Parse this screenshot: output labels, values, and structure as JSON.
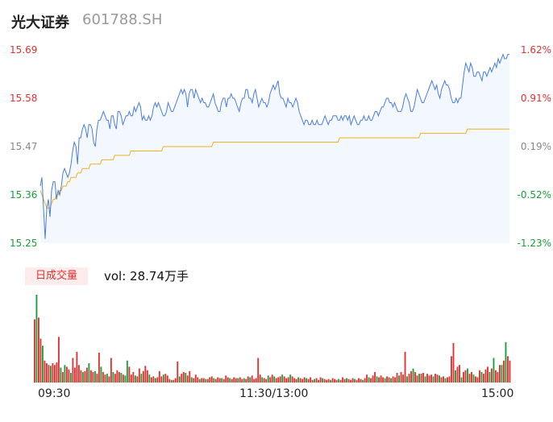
{
  "header": {
    "name": "光大证券",
    "code": "601788.SH"
  },
  "colors": {
    "up": "#e03131",
    "down": "#1a9e3a",
    "price_line": "#4a7de0",
    "avg_line": "#f2b01e",
    "neutral": "#888888"
  },
  "chart_data": {
    "type": "line",
    "price_axis": {
      "labels": [
        "15.69",
        "15.58",
        "15.47",
        "15.36",
        "15.25"
      ],
      "min": 15.25,
      "max": 15.69
    },
    "percent_axis": {
      "labels": [
        "1.62%",
        "0.91%",
        "0.19%",
        "-0.52%",
        "-1.23%"
      ]
    },
    "x_labels": [
      "09:30",
      "11:30/13:00",
      "15:00"
    ],
    "volume_badge": "日成交量",
    "volume_label": "vol: 28.74万手",
    "price": [
      15.38,
      15.4,
      15.33,
      15.26,
      15.33,
      15.35,
      15.31,
      15.37,
      15.39,
      15.39,
      15.35,
      15.37,
      15.36,
      15.38,
      15.41,
      15.42,
      15.41,
      15.4,
      15.41,
      15.43,
      15.46,
      15.48,
      15.47,
      15.43,
      15.49,
      15.49,
      15.51,
      15.52,
      15.51,
      15.49,
      15.52,
      15.52,
      15.51,
      15.48,
      15.47,
      15.51,
      15.53,
      15.53,
      15.54,
      15.55,
      15.54,
      15.53,
      15.53,
      15.51,
      15.54,
      15.54,
      15.52,
      15.51,
      15.55,
      15.55,
      15.54,
      15.52,
      15.53,
      15.54,
      15.54,
      15.55,
      15.54,
      15.54,
      15.56,
      15.55,
      15.56,
      15.57,
      15.56,
      15.53,
      15.54,
      15.53,
      15.53,
      15.54,
      15.53,
      15.54,
      15.56,
      15.57,
      15.56,
      15.57,
      15.56,
      15.55,
      15.54,
      15.54,
      15.55,
      15.57,
      15.56,
      15.55,
      15.55,
      15.56,
      15.57,
      15.58,
      15.59,
      15.6,
      15.59,
      15.6,
      15.59,
      15.56,
      15.59,
      15.6,
      15.6,
      15.58,
      15.6,
      15.59,
      15.58,
      15.57,
      15.58,
      15.57,
      15.57,
      15.56,
      15.56,
      15.57,
      15.58,
      15.59,
      15.57,
      15.56,
      15.55,
      15.55,
      15.57,
      15.58,
      15.58,
      15.56,
      15.58,
      15.58,
      15.59,
      15.58,
      15.58,
      15.57,
      15.56,
      15.55,
      15.57,
      15.58,
      15.58,
      15.6,
      15.6,
      15.58,
      15.58,
      15.57,
      15.59,
      15.6,
      15.58,
      15.56,
      15.57,
      15.58,
      15.57,
      15.57,
      15.56,
      15.57,
      15.59,
      15.6,
      15.61,
      15.6,
      15.61,
      15.62,
      15.59,
      15.58,
      15.58,
      15.57,
      15.56,
      15.58,
      15.57,
      15.57,
      15.56,
      15.57,
      15.58,
      15.57,
      15.55,
      15.54,
      15.53,
      15.52,
      15.53,
      15.53,
      15.52,
      15.52,
      15.53,
      15.52,
      15.52,
      15.53,
      15.52,
      15.52,
      15.52,
      15.53,
      15.54,
      15.53,
      15.52,
      15.53,
      15.53,
      15.54,
      15.54,
      15.54,
      15.53,
      15.53,
      15.54,
      15.53,
      15.54,
      15.54,
      15.53,
      15.54,
      15.52,
      15.53,
      15.54,
      15.53,
      15.52,
      15.52,
      15.53,
      15.53,
      15.54,
      15.53,
      15.53,
      15.54,
      15.53,
      15.53,
      15.54,
      15.55,
      15.55,
      15.54,
      15.55,
      15.56,
      15.56,
      15.57,
      15.58,
      15.58,
      15.57,
      15.57,
      15.56,
      15.57,
      15.56,
      15.55,
      15.55,
      15.55,
      15.56,
      15.58,
      15.59,
      15.58,
      15.57,
      15.55,
      15.55,
      15.56,
      15.58,
      15.6,
      15.59,
      15.58,
      15.57,
      15.57,
      15.58,
      15.59,
      15.6,
      15.61,
      15.62,
      15.61,
      15.6,
      15.61,
      15.59,
      15.58,
      15.6,
      15.61,
      15.62,
      15.61,
      15.61,
      15.6,
      15.58,
      15.57,
      15.57,
      15.58,
      15.57,
      15.58,
      15.58,
      15.61,
      15.64,
      15.66,
      15.65,
      15.64,
      15.66,
      15.65,
      15.63,
      15.63,
      15.64,
      15.64,
      15.63,
      15.62,
      15.64,
      15.64,
      15.63,
      15.64,
      15.65,
      15.64,
      15.65,
      15.66,
      15.65,
      15.67,
      15.66,
      15.67,
      15.68,
      15.67,
      15.67,
      15.68,
      15.68
    ],
    "avg": [
      15.37,
      15.36,
      15.35,
      15.34,
      15.33,
      15.33,
      15.33,
      15.34,
      15.35,
      15.35,
      15.36,
      15.36,
      15.37,
      15.37,
      15.38,
      15.38,
      15.38,
      15.39,
      15.39,
      15.4,
      15.4,
      15.4,
      15.4,
      15.41,
      15.41,
      15.41,
      15.42,
      15.42,
      15.42,
      15.42,
      15.42,
      15.43,
      15.43,
      15.43,
      15.43,
      15.43,
      15.43,
      15.43,
      15.44,
      15.44,
      15.44,
      15.44,
      15.44,
      15.44,
      15.44,
      15.44,
      15.45,
      15.45,
      15.45,
      15.45,
      15.45,
      15.45,
      15.45,
      15.45,
      15.45,
      15.45,
      15.46,
      15.46,
      15.46,
      15.46,
      15.46,
      15.46,
      15.46,
      15.46,
      15.46,
      15.46,
      15.46,
      15.46,
      15.46,
      15.46,
      15.46,
      15.46,
      15.46,
      15.46,
      15.46,
      15.46,
      15.47,
      15.47,
      15.47,
      15.47,
      15.47,
      15.47,
      15.47,
      15.47,
      15.47,
      15.47,
      15.47,
      15.47,
      15.47,
      15.47,
      15.47,
      15.47,
      15.47,
      15.47,
      15.47,
      15.47,
      15.47,
      15.47,
      15.47,
      15.47,
      15.47,
      15.47,
      15.47,
      15.47,
      15.47,
      15.47,
      15.47,
      15.48,
      15.48,
      15.48,
      15.48,
      15.48,
      15.48,
      15.48,
      15.48,
      15.48,
      15.48,
      15.48,
      15.48,
      15.48,
      15.48,
      15.48,
      15.48,
      15.48,
      15.48,
      15.48,
      15.48,
      15.48,
      15.48,
      15.48,
      15.48,
      15.48,
      15.48,
      15.48,
      15.48,
      15.48,
      15.48,
      15.48,
      15.48,
      15.48,
      15.48,
      15.48,
      15.48,
      15.48,
      15.48,
      15.48,
      15.48,
      15.48,
      15.48,
      15.48,
      15.48,
      15.48,
      15.48,
      15.48,
      15.48,
      15.48,
      15.48,
      15.48,
      15.48,
      15.48,
      15.48,
      15.48,
      15.48,
      15.48,
      15.48,
      15.48,
      15.48,
      15.48,
      15.48,
      15.48,
      15.48,
      15.48,
      15.48,
      15.48,
      15.48,
      15.48,
      15.48,
      15.48,
      15.48,
      15.48,
      15.48,
      15.48,
      15.48,
      15.48,
      15.48,
      15.49,
      15.49,
      15.49,
      15.49,
      15.49,
      15.49,
      15.49,
      15.49,
      15.49,
      15.49,
      15.49,
      15.49,
      15.49,
      15.49,
      15.49,
      15.49,
      15.49,
      15.49,
      15.49,
      15.49,
      15.49,
      15.49,
      15.49,
      15.49,
      15.49,
      15.49,
      15.49,
      15.49,
      15.49,
      15.49,
      15.49,
      15.49,
      15.49,
      15.49,
      15.49,
      15.49,
      15.49,
      15.49,
      15.49,
      15.49,
      15.49,
      15.49,
      15.49,
      15.49,
      15.49,
      15.49,
      15.49,
      15.49,
      15.49,
      15.49,
      15.5,
      15.5,
      15.5,
      15.5,
      15.5,
      15.5,
      15.5,
      15.5,
      15.5,
      15.5,
      15.5,
      15.5,
      15.5,
      15.5,
      15.5,
      15.5,
      15.5,
      15.5,
      15.5,
      15.5,
      15.5,
      15.5,
      15.5,
      15.5,
      15.5,
      15.5,
      15.5,
      15.5,
      15.5,
      15.51,
      15.51,
      15.51,
      15.51,
      15.51,
      15.51,
      15.51,
      15.51,
      15.51,
      15.51,
      15.51,
      15.51,
      15.51,
      15.51,
      15.51,
      15.51,
      15.51,
      15.51,
      15.51,
      15.51,
      15.51,
      15.51,
      15.51,
      15.51,
      15.51,
      15.51,
      15.51
    ],
    "volume": [
      [
        0.72,
        "u"
      ],
      [
        1.0,
        "d"
      ],
      [
        0.74,
        "u"
      ],
      [
        0.5,
        "u"
      ],
      [
        0.42,
        "d"
      ],
      [
        0.25,
        "u"
      ],
      [
        0.22,
        "u"
      ],
      [
        0.2,
        "u"
      ],
      [
        0.19,
        "d"
      ],
      [
        0.22,
        "u"
      ],
      [
        0.2,
        "u"
      ],
      [
        0.23,
        "u"
      ],
      [
        0.52,
        "u"
      ],
      [
        0.17,
        "d"
      ],
      [
        0.12,
        "u"
      ],
      [
        0.2,
        "d"
      ],
      [
        0.18,
        "u"
      ],
      [
        0.15,
        "u"
      ],
      [
        0.11,
        "d"
      ],
      [
        0.28,
        "u"
      ],
      [
        0.17,
        "u"
      ],
      [
        0.35,
        "u"
      ],
      [
        0.2,
        "u"
      ],
      [
        0.14,
        "u"
      ],
      [
        0.12,
        "d"
      ],
      [
        0.13,
        "u"
      ],
      [
        0.17,
        "u"
      ],
      [
        0.22,
        "d"
      ],
      [
        0.14,
        "u"
      ],
      [
        0.12,
        "u"
      ],
      [
        0.13,
        "d"
      ],
      [
        0.1,
        "u"
      ],
      [
        0.34,
        "u"
      ],
      [
        0.18,
        "d"
      ],
      [
        0.12,
        "u"
      ],
      [
        0.09,
        "u"
      ],
      [
        0.1,
        "d"
      ],
      [
        0.07,
        "u"
      ],
      [
        0.28,
        "u"
      ],
      [
        0.12,
        "d"
      ],
      [
        0.1,
        "u"
      ],
      [
        0.14,
        "u"
      ],
      [
        0.12,
        "u"
      ],
      [
        0.11,
        "d"
      ],
      [
        0.09,
        "u"
      ],
      [
        0.08,
        "d"
      ],
      [
        0.25,
        "d"
      ],
      [
        0.18,
        "u"
      ],
      [
        0.09,
        "u"
      ],
      [
        0.12,
        "u"
      ],
      [
        0.08,
        "d"
      ],
      [
        0.07,
        "u"
      ],
      [
        0.16,
        "u"
      ],
      [
        0.1,
        "d"
      ],
      [
        0.13,
        "u"
      ],
      [
        0.19,
        "u"
      ],
      [
        0.14,
        "u"
      ],
      [
        0.09,
        "d"
      ],
      [
        0.06,
        "u"
      ],
      [
        0.07,
        "u"
      ],
      [
        0.05,
        "d"
      ],
      [
        0.06,
        "u"
      ],
      [
        0.13,
        "u"
      ],
      [
        0.07,
        "u"
      ],
      [
        0.09,
        "d"
      ],
      [
        0.1,
        "u"
      ],
      [
        0.08,
        "u"
      ],
      [
        0.04,
        "u"
      ],
      [
        0.03,
        "d"
      ],
      [
        0.03,
        "u"
      ],
      [
        0.05,
        "u"
      ],
      [
        0.24,
        "u"
      ],
      [
        0.07,
        "d"
      ],
      [
        0.1,
        "u"
      ],
      [
        0.12,
        "u"
      ],
      [
        0.11,
        "d"
      ],
      [
        0.08,
        "u"
      ],
      [
        0.13,
        "u"
      ],
      [
        0.06,
        "d"
      ],
      [
        0.05,
        "u"
      ],
      [
        0.09,
        "u"
      ],
      [
        0.06,
        "u"
      ],
      [
        0.04,
        "d"
      ],
      [
        0.05,
        "u"
      ],
      [
        0.05,
        "u"
      ],
      [
        0.04,
        "d"
      ],
      [
        0.04,
        "u"
      ],
      [
        0.06,
        "u"
      ],
      [
        0.07,
        "u"
      ],
      [
        0.05,
        "d"
      ],
      [
        0.04,
        "u"
      ],
      [
        0.06,
        "u"
      ],
      [
        0.05,
        "u"
      ],
      [
        0.05,
        "d"
      ],
      [
        0.04,
        "u"
      ],
      [
        0.08,
        "u"
      ],
      [
        0.06,
        "u"
      ],
      [
        0.05,
        "d"
      ],
      [
        0.04,
        "u"
      ],
      [
        0.06,
        "u"
      ],
      [
        0.05,
        "u"
      ],
      [
        0.05,
        "d"
      ],
      [
        0.06,
        "u"
      ],
      [
        0.04,
        "u"
      ],
      [
        0.05,
        "d"
      ],
      [
        0.04,
        "u"
      ],
      [
        0.07,
        "u"
      ],
      [
        0.06,
        "d"
      ],
      [
        0.08,
        "u"
      ],
      [
        0.04,
        "u"
      ],
      [
        0.05,
        "u"
      ],
      [
        0.28,
        "u"
      ],
      [
        0.09,
        "u"
      ],
      [
        0.06,
        "d"
      ],
      [
        0.05,
        "u"
      ],
      [
        0.04,
        "u"
      ],
      [
        0.08,
        "d"
      ],
      [
        0.06,
        "u"
      ],
      [
        0.09,
        "u"
      ],
      [
        0.07,
        "d"
      ],
      [
        0.05,
        "u"
      ],
      [
        0.06,
        "u"
      ],
      [
        0.07,
        "u"
      ],
      [
        0.09,
        "d"
      ],
      [
        0.07,
        "u"
      ],
      [
        0.05,
        "u"
      ],
      [
        0.06,
        "u"
      ],
      [
        0.09,
        "d"
      ],
      [
        0.07,
        "u"
      ],
      [
        0.05,
        "u"
      ],
      [
        0.04,
        "u"
      ],
      [
        0.06,
        "d"
      ],
      [
        0.05,
        "u"
      ],
      [
        0.04,
        "u"
      ],
      [
        0.06,
        "u"
      ],
      [
        0.05,
        "d"
      ],
      [
        0.04,
        "u"
      ],
      [
        0.06,
        "u"
      ],
      [
        0.03,
        "u"
      ],
      [
        0.04,
        "d"
      ],
      [
        0.05,
        "u"
      ],
      [
        0.03,
        "u"
      ],
      [
        0.06,
        "u"
      ],
      [
        0.05,
        "d"
      ],
      [
        0.04,
        "u"
      ],
      [
        0.03,
        "u"
      ],
      [
        0.04,
        "u"
      ],
      [
        0.03,
        "d"
      ],
      [
        0.05,
        "u"
      ],
      [
        0.04,
        "u"
      ],
      [
        0.03,
        "u"
      ],
      [
        0.04,
        "d"
      ],
      [
        0.03,
        "u"
      ],
      [
        0.06,
        "u"
      ],
      [
        0.04,
        "u"
      ],
      [
        0.05,
        "d"
      ],
      [
        0.04,
        "u"
      ],
      [
        0.03,
        "u"
      ],
      [
        0.05,
        "u"
      ],
      [
        0.04,
        "d"
      ],
      [
        0.03,
        "u"
      ],
      [
        0.05,
        "u"
      ],
      [
        0.04,
        "u"
      ],
      [
        0.03,
        "d"
      ],
      [
        0.05,
        "u"
      ],
      [
        0.09,
        "u"
      ],
      [
        0.06,
        "d"
      ],
      [
        0.05,
        "u"
      ],
      [
        0.08,
        "u"
      ],
      [
        0.12,
        "u"
      ],
      [
        0.07,
        "d"
      ],
      [
        0.06,
        "u"
      ],
      [
        0.08,
        "u"
      ],
      [
        0.06,
        "u"
      ],
      [
        0.05,
        "d"
      ],
      [
        0.07,
        "u"
      ],
      [
        0.06,
        "u"
      ],
      [
        0.05,
        "d"
      ],
      [
        0.07,
        "u"
      ],
      [
        0.06,
        "u"
      ],
      [
        0.11,
        "u"
      ],
      [
        0.08,
        "d"
      ],
      [
        0.12,
        "u"
      ],
      [
        0.09,
        "u"
      ],
      [
        0.35,
        "u"
      ],
      [
        0.07,
        "d"
      ],
      [
        0.1,
        "u"
      ],
      [
        0.13,
        "u"
      ],
      [
        0.16,
        "d"
      ],
      [
        0.12,
        "u"
      ],
      [
        0.08,
        "u"
      ],
      [
        0.1,
        "d"
      ],
      [
        0.1,
        "u"
      ],
      [
        0.11,
        "u"
      ],
      [
        0.07,
        "d"
      ],
      [
        0.1,
        "u"
      ],
      [
        0.08,
        "u"
      ],
      [
        0.09,
        "u"
      ],
      [
        0.07,
        "d"
      ],
      [
        0.1,
        "u"
      ],
      [
        0.09,
        "u"
      ],
      [
        0.08,
        "d"
      ],
      [
        0.06,
        "u"
      ],
      [
        0.07,
        "u"
      ],
      [
        0.05,
        "d"
      ],
      [
        0.06,
        "u"
      ],
      [
        0.07,
        "u"
      ],
      [
        0.3,
        "u"
      ],
      [
        0.45,
        "u"
      ],
      [
        0.14,
        "d"
      ],
      [
        0.18,
        "u"
      ],
      [
        0.2,
        "u"
      ],
      [
        0.06,
        "d"
      ],
      [
        0.12,
        "u"
      ],
      [
        0.14,
        "u"
      ],
      [
        0.16,
        "d"
      ],
      [
        0.1,
        "u"
      ],
      [
        0.12,
        "u"
      ],
      [
        0.09,
        "d"
      ],
      [
        0.07,
        "u"
      ],
      [
        0.06,
        "u"
      ],
      [
        0.14,
        "u"
      ],
      [
        0.12,
        "d"
      ],
      [
        0.1,
        "u"
      ],
      [
        0.15,
        "u"
      ],
      [
        0.18,
        "u"
      ],
      [
        0.12,
        "d"
      ],
      [
        0.16,
        "u"
      ],
      [
        0.28,
        "d"
      ],
      [
        0.14,
        "u"
      ],
      [
        0.12,
        "u"
      ],
      [
        0.2,
        "u"
      ],
      [
        0.2,
        "d"
      ],
      [
        0.25,
        "u"
      ],
      [
        0.46,
        "d"
      ],
      [
        0.3,
        "u"
      ],
      [
        0.25,
        "u"
      ]
    ]
  }
}
